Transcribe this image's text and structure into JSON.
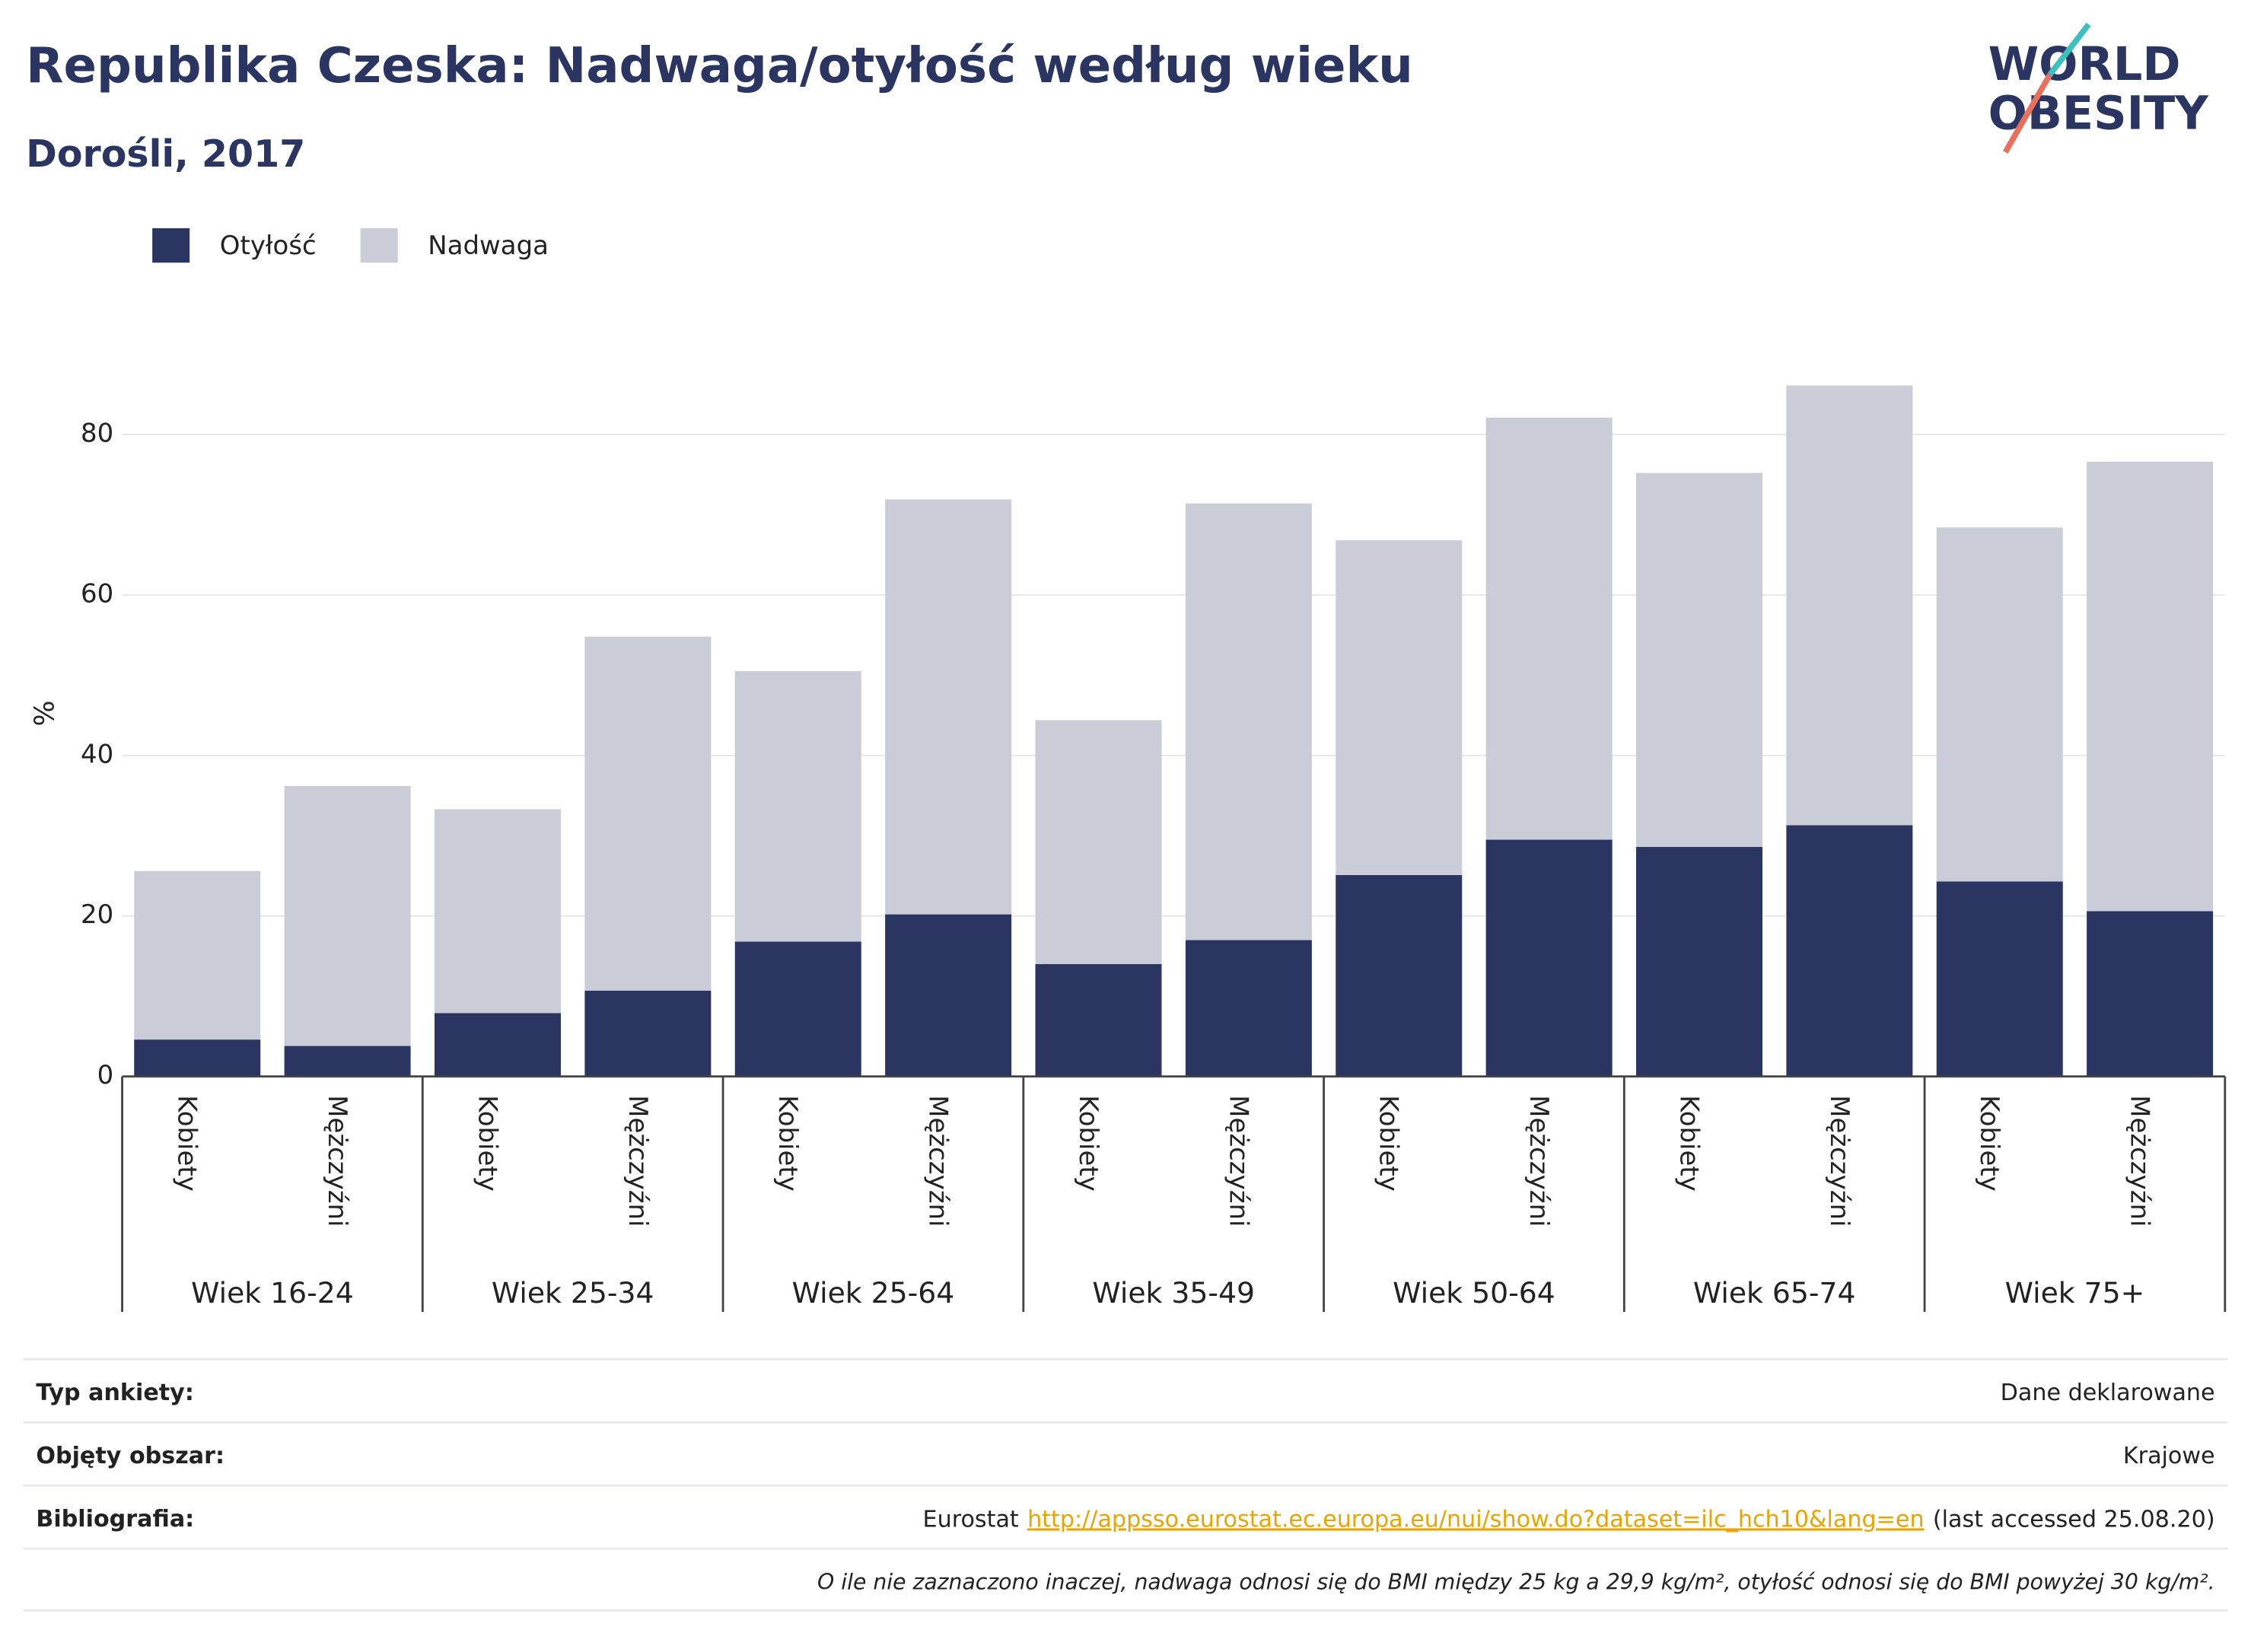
{
  "chart_data": {
    "type": "bar",
    "stacked": true,
    "title": "Republika Czeska: Nadwaga/otyłość według wieku",
    "subtitle": "Dorośli, 2017",
    "y_label": "%",
    "categories": [
      "Kobiety",
      "Mężczyźni",
      "Kobiety",
      "Mężczyźni",
      "Kobiety",
      "Mężczyźni",
      "Kobiety",
      "Mężczyźni",
      "Kobiety",
      "Mężczyźni",
      "Kobiety",
      "Mężczyźni",
      "Kobiety",
      "Mężczyźni"
    ],
    "groups": [
      "Wiek 16-24",
      "Wiek 25-34",
      "Wiek 25-64",
      "Wiek 35-49",
      "Wiek 50-64",
      "Wiek 65-74",
      "Wiek 75+"
    ],
    "series": [
      {
        "name": "Otyłość",
        "color": "#2a3561",
        "values": [
          4.6,
          3.8,
          7.9,
          10.7,
          16.8,
          20.2,
          14.0,
          17.0,
          25.1,
          29.5,
          28.6,
          31.3,
          24.3,
          20.6
        ]
      },
      {
        "name": "Nadwaga",
        "color": "#cacdd8",
        "values": [
          21.0,
          32.4,
          25.4,
          44.1,
          33.7,
          51.7,
          30.4,
          54.4,
          41.7,
          52.6,
          46.6,
          54.8,
          44.1,
          56.0
        ]
      }
    ],
    "ylim": [
      0,
      93
    ],
    "yticks": [
      0,
      20,
      40,
      60,
      80
    ],
    "grid": true,
    "legend": "top-left"
  },
  "logo": {
    "line1": "WORLD",
    "line2": "OBESITY"
  },
  "footer": {
    "rows": [
      {
        "label": "Typ ankiety:",
        "value": "Dane deklarowane"
      },
      {
        "label": "Objęty obszar:",
        "value": "Krajowe"
      },
      {
        "label": "Bibliografia:",
        "prefix": "Eurostat",
        "link": "http://appsso.eurostat.ec.europa.eu/nui/show.do?dataset=ilc_hch10&lang=en",
        "suffix": "(last accessed 25.08.20)"
      }
    ],
    "note": "O ile nie zaznaczono inaczej, nadwaga odnosi się do BMI między 25 kg a 29,9 kg/m², otyłość odnosi się do BMI powyżej 30 kg/m²."
  }
}
